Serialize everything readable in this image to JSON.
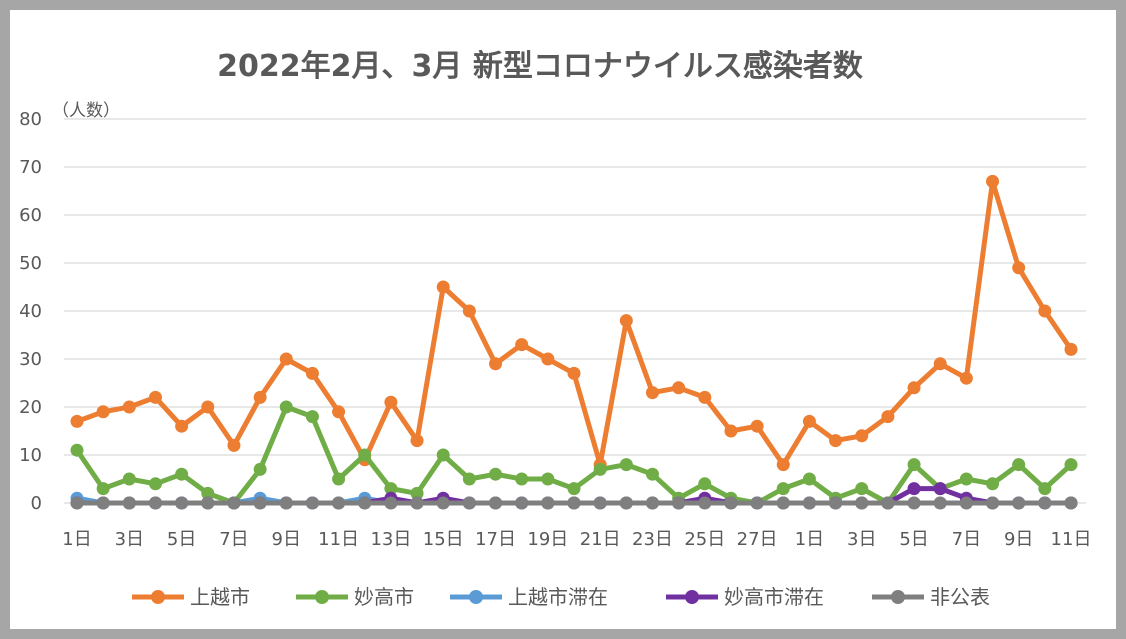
{
  "chart_data": {
    "type": "line",
    "title": "2022年2月、3月 新型コロナウイルス感染者数",
    "ylabel": "（人数）",
    "xlabel": "",
    "ylim": [
      0,
      80
    ],
    "yticks": [
      "0",
      "10",
      "20",
      "30",
      "40",
      "50",
      "60",
      "70",
      "80"
    ],
    "grid": true,
    "legend_position": "bottom",
    "categories": [
      "1日",
      "2日",
      "3日",
      "4日",
      "5日",
      "6日",
      "7日",
      "8日",
      "9日",
      "10日",
      "11日",
      "12日",
      "13日",
      "14日",
      "15日",
      "16日",
      "17日",
      "18日",
      "19日",
      "20日",
      "21日",
      "22日",
      "23日",
      "24日",
      "25日",
      "26日",
      "27日",
      "28日",
      "1日",
      "2日",
      "3日",
      "4日",
      "5日",
      "6日",
      "7日",
      "8日",
      "9日",
      "10日",
      "11日"
    ],
    "xtick_labels": [
      "1日",
      "",
      "3日",
      "",
      "5日",
      "",
      "7日",
      "",
      "9日",
      "",
      "11日",
      "",
      "13日",
      "",
      "15日",
      "",
      "17日",
      "",
      "19日",
      "",
      "21日",
      "",
      "23日",
      "",
      "25日",
      "",
      "27日",
      "",
      "1日",
      "",
      "3日",
      "",
      "5日",
      "",
      "7日",
      "",
      "9日",
      "",
      "11日"
    ],
    "series": [
      {
        "name": "上越市",
        "color": "#ed7d31",
        "values": [
          17,
          19,
          20,
          22,
          16,
          20,
          12,
          22,
          30,
          27,
          19,
          9,
          21,
          13,
          45,
          40,
          29,
          33,
          30,
          27,
          8,
          38,
          23,
          24,
          22,
          15,
          16,
          8,
          17,
          13,
          14,
          18,
          24,
          29,
          26,
          67,
          49,
          40,
          32
        ]
      },
      {
        "name": "妙高市",
        "color": "#70ad47",
        "values": [
          11,
          3,
          5,
          4,
          6,
          2,
          0,
          7,
          20,
          18,
          5,
          10,
          3,
          2,
          10,
          5,
          6,
          5,
          5,
          3,
          7,
          8,
          6,
          1,
          4,
          1,
          0,
          3,
          5,
          1,
          3,
          0,
          8,
          3,
          5,
          4,
          8,
          3,
          8
        ]
      },
      {
        "name": "上越市滞在",
        "color": "#5b9bd5",
        "values": [
          1,
          0,
          0,
          0,
          0,
          0,
          0,
          1,
          0,
          0,
          0,
          1,
          0,
          0,
          0,
          0,
          0,
          0,
          0,
          0,
          0,
          0,
          0,
          0,
          0,
          0,
          0,
          0,
          0,
          0,
          0,
          0,
          0,
          0,
          0,
          0,
          0,
          0,
          0
        ]
      },
      {
        "name": "妙高市滞在",
        "color": "#7030a0",
        "values": [
          0,
          0,
          0,
          0,
          0,
          0,
          0,
          0,
          0,
          0,
          0,
          0,
          1,
          0,
          1,
          0,
          0,
          0,
          0,
          0,
          0,
          0,
          0,
          0,
          1,
          0,
          0,
          0,
          0,
          0,
          0,
          0,
          3,
          3,
          1,
          0,
          0,
          0,
          0
        ]
      },
      {
        "name": "非公表",
        "color": "#7f7f7f",
        "values": [
          0,
          0,
          0,
          0,
          0,
          0,
          0,
          0,
          0,
          0,
          0,
          0,
          0,
          0,
          0,
          0,
          0,
          0,
          0,
          0,
          0,
          0,
          0,
          0,
          0,
          0,
          0,
          0,
          0,
          0,
          0,
          0,
          0,
          0,
          0,
          0,
          0,
          0,
          0
        ]
      }
    ]
  }
}
